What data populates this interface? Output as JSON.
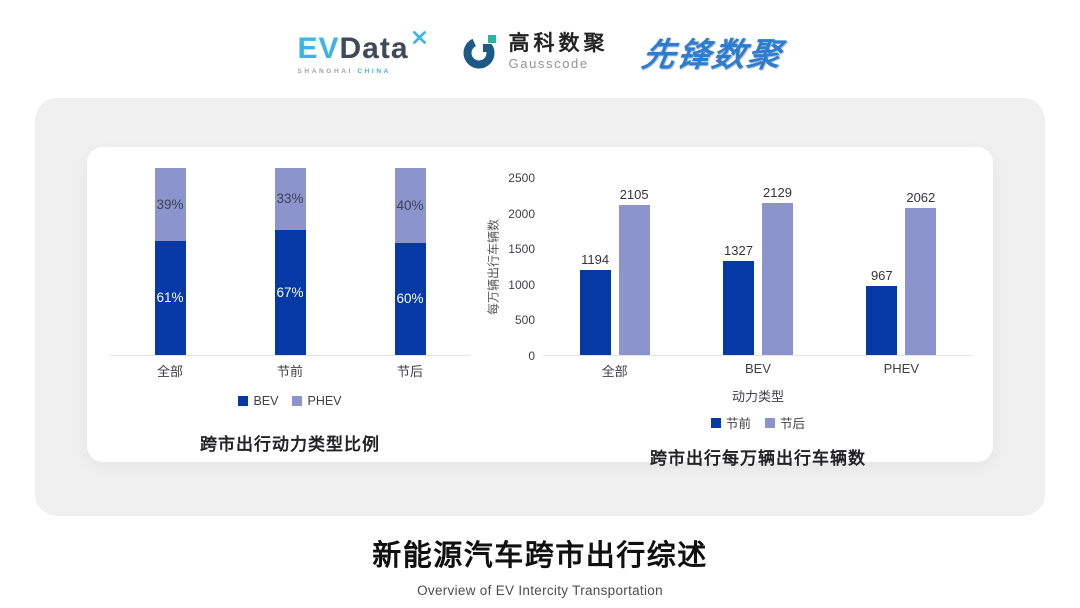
{
  "logos": {
    "evdata": {
      "part1": "EV",
      "part2": "Data",
      "tagline_left": "SHANGHAI",
      "tagline_right": "CHINA"
    },
    "gausscode": {
      "name_cn": "高科数聚",
      "name_en": "Gausscode"
    },
    "xianfeng": {
      "name": "先锋数聚"
    }
  },
  "colors": {
    "evdata_blue": "#3cb4e5",
    "evdata_dark": "#3d4a57",
    "gausscode_navy": "#1a5a84",
    "gausscode_teal": "#2bb5a3",
    "xianfeng_blue": "#2e7ccd",
    "card_bg": "#f0f0f1"
  },
  "chart_data": [
    {
      "type": "bar",
      "subtype": "stacked-percent",
      "title": "跨市出行动力类型比例",
      "categories": [
        "全部",
        "节前",
        "节后"
      ],
      "series": [
        {
          "name": "BEV",
          "color": "#0439a6",
          "values": [
            61,
            67,
            60
          ],
          "label_color": "#ffffff"
        },
        {
          "name": "PHEV",
          "color": "#8b94cd",
          "values": [
            39,
            33,
            40
          ],
          "label_color": "#3c4254"
        }
      ],
      "label_suffix": "%",
      "ylim": [
        0,
        100
      ],
      "grid": false,
      "legend_position": "bottom"
    },
    {
      "type": "bar",
      "subtype": "grouped",
      "title": "跨市出行每万辆出行车辆数",
      "xlabel": "动力类型",
      "ylabel": "每万辆出行车辆数",
      "categories": [
        "全部",
        "BEV",
        "PHEV"
      ],
      "series": [
        {
          "name": "节前",
          "color": "#0439a6",
          "values": [
            1194,
            1327,
            967
          ]
        },
        {
          "name": "节后",
          "color": "#8b94cd",
          "values": [
            2105,
            2129,
            2062
          ]
        }
      ],
      "ylim": [
        0,
        2500
      ],
      "yticks": [
        0,
        500,
        1000,
        1500,
        2000,
        2500
      ],
      "grid": false,
      "legend_position": "bottom"
    }
  ],
  "footer": {
    "title": "新能源汽车跨市出行综述",
    "subtitle": "Overview of EV Intercity Transportation"
  }
}
